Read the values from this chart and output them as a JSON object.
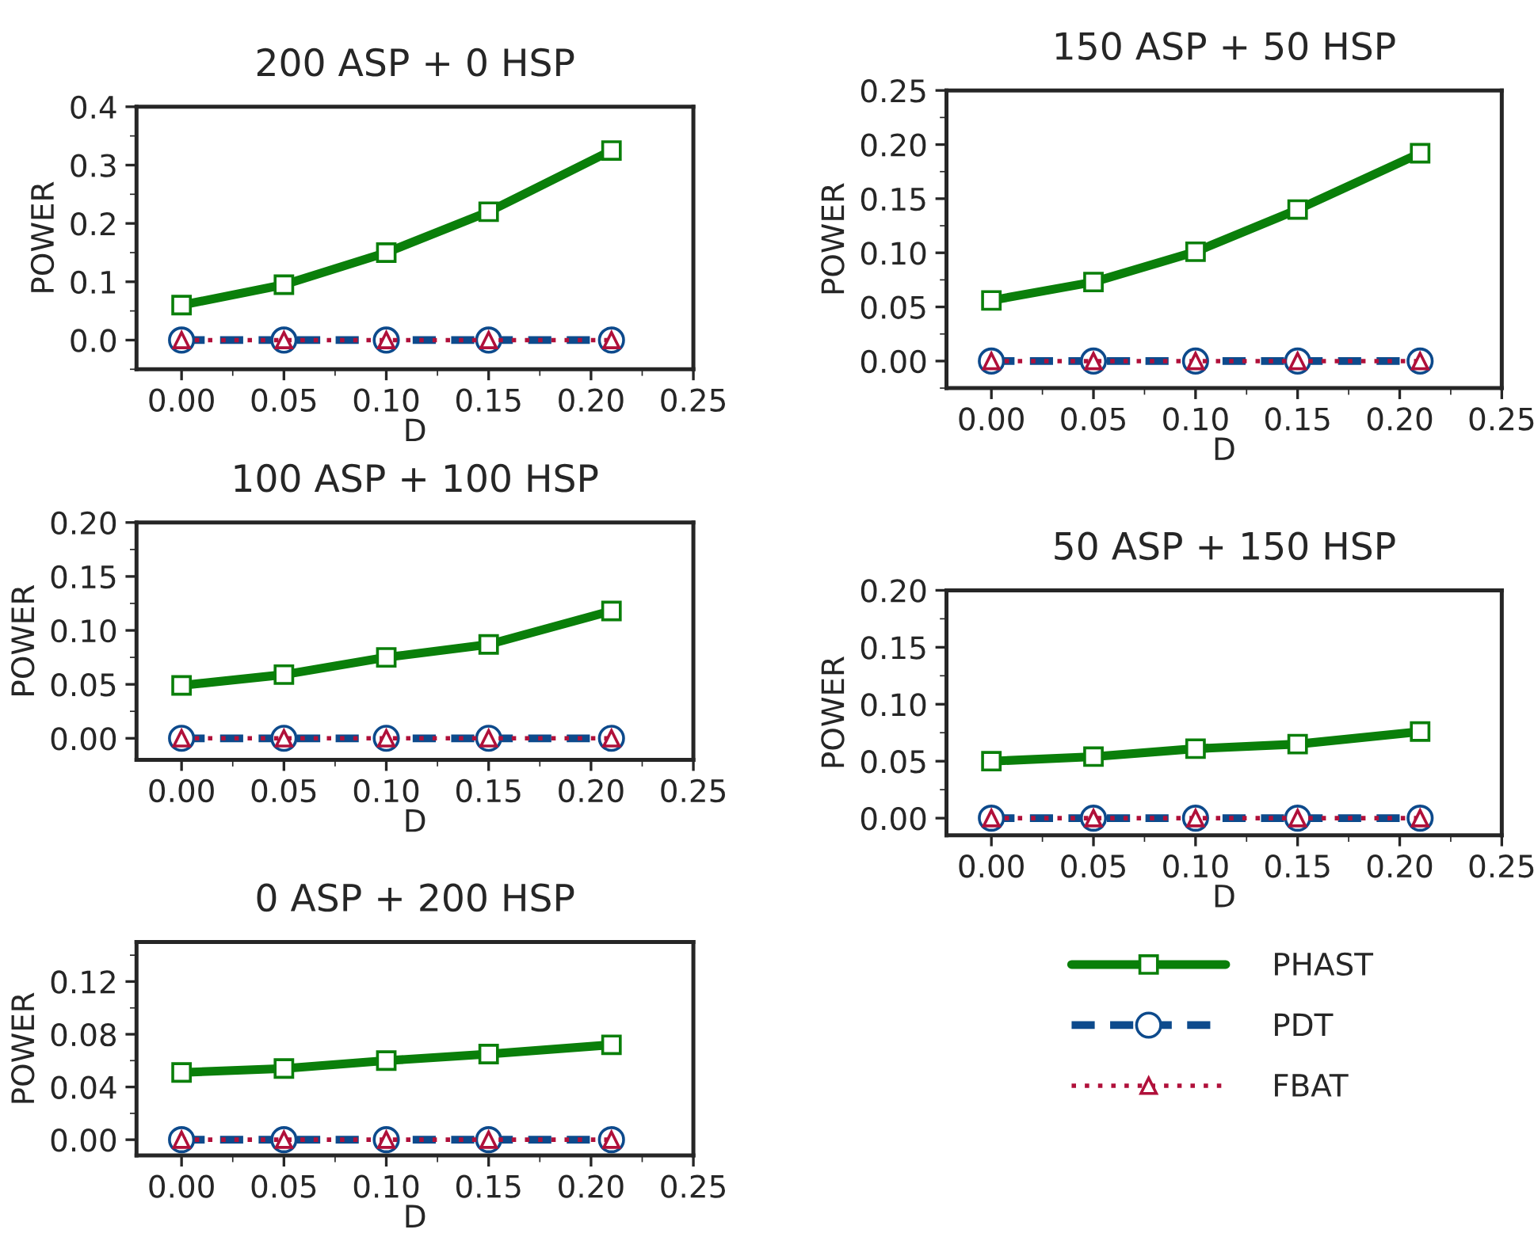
{
  "chart_data": [
    {
      "type": "line",
      "title": "200 ASP + 0 HSP",
      "xlabel": "D",
      "ylabel": "POWER",
      "x": [
        0,
        0.05,
        0.1,
        0.15,
        0.21
      ],
      "xlim": [
        -0.022,
        0.25
      ],
      "xticks": [
        {
          "value": 0,
          "label": "0.00"
        },
        {
          "value": 0.05,
          "label": "0.05"
        },
        {
          "value": 0.1,
          "label": "0.10"
        },
        {
          "value": 0.15,
          "label": "0.15"
        },
        {
          "value": 0.2,
          "label": "0.20"
        },
        {
          "value": 0.25,
          "label": "0.25"
        }
      ],
      "ylim": [
        -0.05,
        0.4
      ],
      "yticks": [
        {
          "value": 0,
          "label": "0.0"
        },
        0.1,
        0.2,
        0.3,
        0.4
      ],
      "grid": false,
      "series": [
        {
          "color": "#0a7f0a",
          "marker": "square",
          "line_style": "solid",
          "values": [
            0.06,
            0.095,
            0.15,
            0.22,
            0.325
          ]
        },
        {
          "color": "#0d4a8c",
          "marker": "circle",
          "line_style": "dashed",
          "values": [
            0,
            0,
            0,
            0,
            0
          ]
        },
        {
          "color": "#b0103a",
          "marker": "triangle",
          "line_style": "dotted",
          "values": [
            0,
            0,
            0,
            0,
            0
          ]
        }
      ]
    },
    {
      "type": "line",
      "title": "150 ASP + 50 HSP",
      "xlabel": "D",
      "ylabel": "POWER",
      "x": [
        0,
        0.05,
        0.1,
        0.15,
        0.21
      ],
      "xlim": [
        -0.022,
        0.25
      ],
      "xticks": [
        {
          "value": 0,
          "label": "0.00"
        },
        {
          "value": 0.05,
          "label": "0.05"
        },
        {
          "value": 0.1,
          "label": "0.10"
        },
        {
          "value": 0.15,
          "label": "0.15"
        },
        {
          "value": 0.2,
          "label": "0.20"
        },
        {
          "value": 0.25,
          "label": "0.25"
        }
      ],
      "ylim": [
        -0.025,
        0.25
      ],
      "yticks": [
        {
          "value": 0,
          "label": "0.00"
        },
        0.05,
        {
          "value": 0.1,
          "label": "0.10"
        },
        0.15,
        {
          "value": 0.2,
          "label": "0.20"
        },
        0.25
      ],
      "grid": false,
      "series": [
        {
          "color": "#0a7f0a",
          "marker": "square",
          "line_style": "solid",
          "values": [
            0.056,
            0.073,
            0.101,
            0.14,
            0.192
          ]
        },
        {
          "color": "#0d4a8c",
          "marker": "circle",
          "line_style": "dashed",
          "values": [
            0,
            0,
            0,
            0,
            0
          ]
        },
        {
          "color": "#b0103a",
          "marker": "triangle",
          "line_style": "dotted",
          "values": [
            0,
            0,
            0,
            0,
            0
          ]
        }
      ]
    },
    {
      "type": "line",
      "title": "100 ASP + 100 HSP",
      "xlabel": "D",
      "ylabel": "POWER",
      "x": [
        0,
        0.05,
        0.1,
        0.15,
        0.21
      ],
      "xlim": [
        -0.022,
        0.25
      ],
      "xticks": [
        {
          "value": 0,
          "label": "0.00"
        },
        {
          "value": 0.05,
          "label": "0.05"
        },
        {
          "value": 0.1,
          "label": "0.10"
        },
        {
          "value": 0.15,
          "label": "0.15"
        },
        {
          "value": 0.2,
          "label": "0.20"
        },
        {
          "value": 0.25,
          "label": "0.25"
        }
      ],
      "ylim": [
        -0.02,
        0.2
      ],
      "yticks": [
        {
          "value": 0,
          "label": "0.00"
        },
        0.05,
        {
          "value": 0.1,
          "label": "0.10"
        },
        0.15,
        {
          "value": 0.2,
          "label": "0.20"
        }
      ],
      "grid": false,
      "series": [
        {
          "color": "#0a7f0a",
          "marker": "square",
          "line_style": "solid",
          "values": [
            0.049,
            0.059,
            0.075,
            0.087,
            0.118
          ]
        },
        {
          "color": "#0d4a8c",
          "marker": "circle",
          "line_style": "dashed",
          "values": [
            0,
            0,
            0,
            0,
            0
          ]
        },
        {
          "color": "#b0103a",
          "marker": "triangle",
          "line_style": "dotted",
          "values": [
            0,
            0,
            0,
            0,
            0
          ]
        }
      ]
    },
    {
      "type": "line",
      "title": "50 ASP + 150 HSP",
      "xlabel": "D",
      "ylabel": "POWER",
      "x": [
        0,
        0.05,
        0.1,
        0.15,
        0.21
      ],
      "xlim": [
        -0.022,
        0.25
      ],
      "xticks": [
        {
          "value": 0,
          "label": "0.00"
        },
        {
          "value": 0.05,
          "label": "0.05"
        },
        {
          "value": 0.1,
          "label": "0.10"
        },
        {
          "value": 0.15,
          "label": "0.15"
        },
        {
          "value": 0.2,
          "label": "0.20"
        },
        {
          "value": 0.25,
          "label": "0.25"
        }
      ],
      "ylim": [
        -0.015,
        0.2
      ],
      "yticks": [
        {
          "value": 0,
          "label": "0.00"
        },
        0.05,
        {
          "value": 0.1,
          "label": "0.10"
        },
        0.15,
        {
          "value": 0.2,
          "label": "0.20"
        }
      ],
      "grid": false,
      "series": [
        {
          "color": "#0a7f0a",
          "marker": "square",
          "line_style": "solid",
          "values": [
            0.05,
            0.054,
            0.061,
            0.065,
            0.076
          ]
        },
        {
          "color": "#0d4a8c",
          "marker": "circle",
          "line_style": "dashed",
          "values": [
            0,
            0,
            0,
            0,
            0
          ]
        },
        {
          "color": "#b0103a",
          "marker": "triangle",
          "line_style": "dotted",
          "values": [
            0,
            0,
            0,
            0,
            0
          ]
        }
      ]
    },
    {
      "type": "line",
      "title": "0 ASP + 200 HSP",
      "xlabel": "D",
      "ylabel": "POWER",
      "x": [
        0,
        0.05,
        0.1,
        0.15,
        0.21
      ],
      "xlim": [
        -0.022,
        0.25
      ],
      "xticks": [
        {
          "value": 0,
          "label": "0.00"
        },
        {
          "value": 0.05,
          "label": "0.05"
        },
        {
          "value": 0.1,
          "label": "0.10"
        },
        {
          "value": 0.15,
          "label": "0.15"
        },
        {
          "value": 0.2,
          "label": "0.20"
        },
        {
          "value": 0.25,
          "label": "0.25"
        }
      ],
      "ylim": [
        -0.012,
        0.15
      ],
      "yticks": [
        {
          "value": 0,
          "label": "0.00"
        },
        0.04,
        0.08,
        0.12
      ],
      "grid": false,
      "legend": "right",
      "series": [
        {
          "name": "PHAST",
          "color": "#0a7f0a",
          "marker": "square",
          "line_style": "solid",
          "values": [
            0.051,
            0.054,
            0.06,
            0.065,
            0.072
          ]
        },
        {
          "name": "PDT",
          "color": "#0d4a8c",
          "marker": "circle",
          "line_style": "dashed",
          "values": [
            0,
            0,
            0,
            0,
            0
          ]
        },
        {
          "name": "FBAT",
          "color": "#b0103a",
          "marker": "triangle",
          "line_style": "dotted",
          "values": [
            0,
            0,
            0,
            0,
            0
          ]
        }
      ]
    }
  ]
}
